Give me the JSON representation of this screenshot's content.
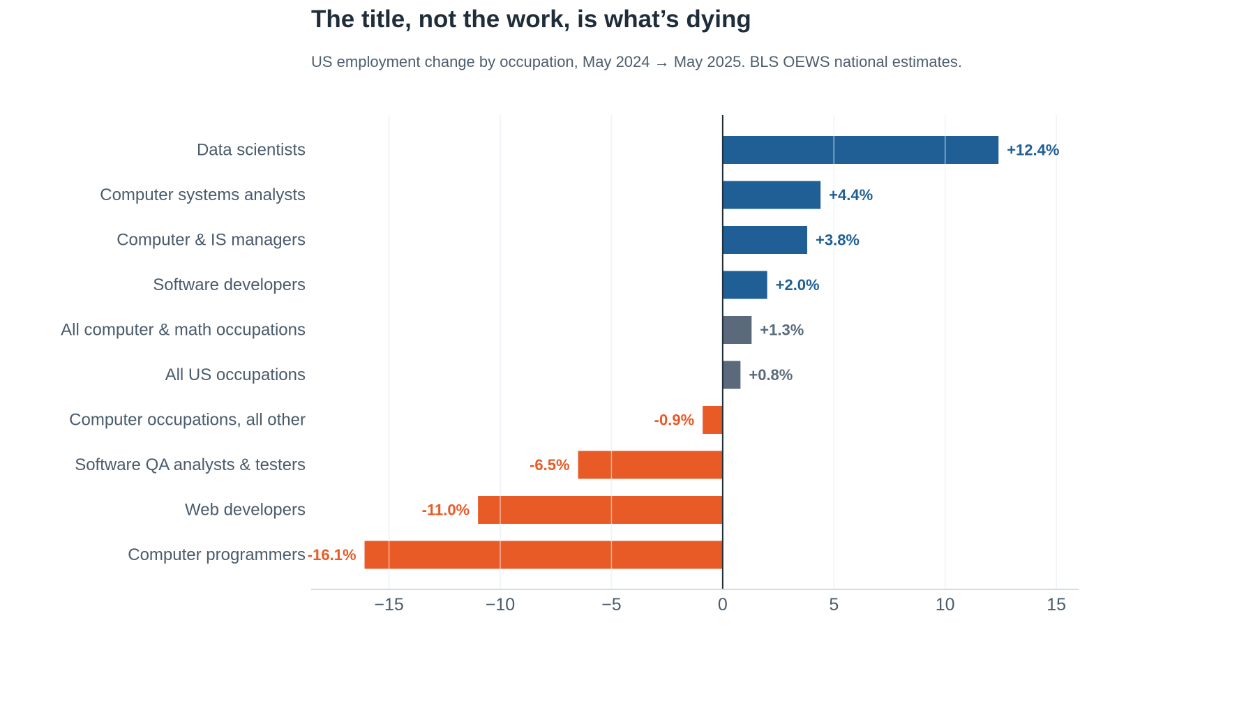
{
  "chart_data": {
    "type": "bar",
    "orientation": "horizontal",
    "title": "The title, not the work, is what’s dying",
    "subtitle": "US employment change by occupation, May 2024 → May 2025. BLS OEWS national estimates.",
    "xlabel": "",
    "ylabel": "",
    "xlim": [
      -18.5,
      16
    ],
    "x_ticks": [
      -15,
      -10,
      -5,
      0,
      5,
      10,
      15
    ],
    "x_tick_labels": [
      "−15",
      "−10",
      "−5",
      "0",
      "5",
      "10",
      "15"
    ],
    "grid": "vertical",
    "categories": [
      "Data scientists",
      "Computer systems analysts",
      "Computer & IS managers",
      "Software developers",
      "All computer & math occupations",
      "All US occupations",
      "Computer occupations, all other",
      "Software QA analysts & testers",
      "Web developers",
      "Computer programmers"
    ],
    "values": [
      12.4,
      4.4,
      3.8,
      2.0,
      1.3,
      0.8,
      -0.9,
      -6.5,
      -11.0,
      -16.1
    ],
    "value_labels": [
      "+12.4%",
      "+4.4%",
      "+3.8%",
      "+2.0%",
      "+1.3%",
      "+0.8%",
      "-0.9%",
      "-6.5%",
      "-11.0%",
      "-16.1%"
    ],
    "bar_groups": [
      "growth",
      "growth",
      "growth",
      "growth",
      "benchmark",
      "benchmark",
      "decline",
      "decline",
      "decline",
      "decline"
    ],
    "colors": {
      "growth": "#1f5f96",
      "benchmark": "#5a6a7a",
      "decline": "#e85a26",
      "grid": "#dce6ee",
      "zero_line": "#1f2d3a",
      "axis_line": "#cfdbe6"
    }
  }
}
